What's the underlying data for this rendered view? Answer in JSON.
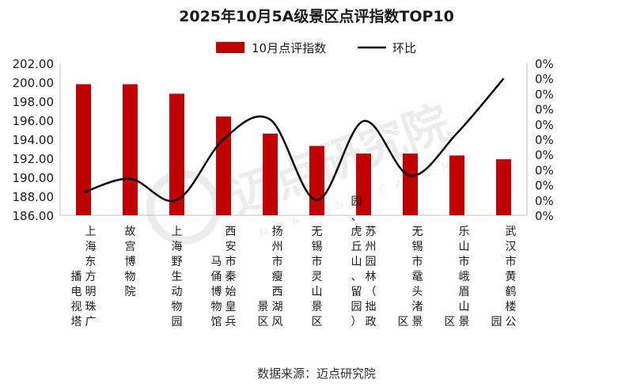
{
  "title": "2025年10月5A级景区点评指数TOP10",
  "source": "数据来源：迈点研究院",
  "watermark": {
    "cn": "迈点研究院",
    "en": "MEADIN ACADEMY",
    "color": "#dddddd"
  },
  "chart_data": {
    "type": "bar",
    "title": "2025年10月5A级景区点评指数TOP10",
    "xlabel": "",
    "ylabel": "",
    "legend_position": "top",
    "grid": false,
    "ylim": [
      186,
      202
    ],
    "y2lim": [
      0,
      10
    ],
    "y_ticks": [
      "186.00",
      "188.00",
      "190.00",
      "192.00",
      "194.00",
      "196.00",
      "198.00",
      "200.00",
      "202.00"
    ],
    "y2_ticks": [
      "0%",
      "0%",
      "0%",
      "0%",
      "0%",
      "0%",
      "0%",
      "0%",
      "0%",
      "0%",
      "0%"
    ],
    "categories": [
      "上海东方明珠广播电视塔",
      "故宫博物院",
      "上海野生动物园",
      "西安市秦始皇兵马俑博物馆",
      "扬州市瘦西湖风景区",
      "无锡市灵山景区",
      "苏州园林（拙政园、虎丘山、留园）",
      "无锡市鼋头渚景区",
      "乐山市峨眉山景区",
      "武汉市黄鹤楼公园"
    ],
    "series": [
      {
        "name": "10月点评指数",
        "type": "bar",
        "color": "#c00000",
        "values": [
          199.8,
          199.8,
          198.8,
          196.4,
          194.6,
          193.3,
          192.5,
          192.5,
          192.3,
          191.9
        ]
      },
      {
        "name": "环比",
        "type": "line",
        "axis": "right",
        "color": "#000000",
        "values": [
          1.5,
          2.4,
          1.0,
          5.0,
          6.3,
          1.0,
          6.2,
          2.6,
          5.4,
          9.0
        ]
      }
    ]
  }
}
